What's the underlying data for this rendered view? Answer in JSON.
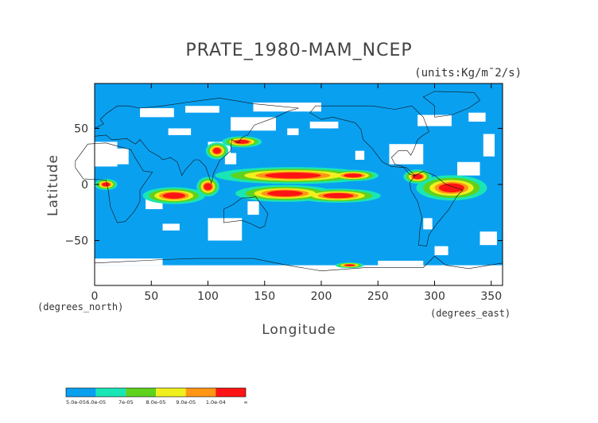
{
  "title": "PRATE_1980-MAM_NCEP",
  "units": "(units:Kg/m¯2/s)",
  "x_axis": {
    "label": "Longitude",
    "unit_note": "(degrees_east)",
    "ticks": [
      "0",
      "50",
      "100",
      "150",
      "200",
      "250",
      "300",
      "350"
    ]
  },
  "y_axis": {
    "label": "Latitude",
    "unit_note": "(degrees_north)",
    "ticks": [
      "50",
      "0",
      "−50"
    ]
  },
  "colorbar": {
    "labels": [
      "5.0e-05",
      "6.0e-05",
      "7e-05",
      "8.0e-05",
      "9.0e-05",
      "1.0e-04",
      "∞"
    ],
    "colors": [
      "#0aa0f0",
      "#19e6b4",
      "#5fd21e",
      "#f0f01e",
      "#ff9614",
      "#ff1414"
    ]
  },
  "map": {
    "background_color": "#0aa0f0",
    "missing_color": "#ffffff",
    "lon_range": [
      0,
      360
    ],
    "lat_range": [
      -90,
      90
    ]
  }
}
